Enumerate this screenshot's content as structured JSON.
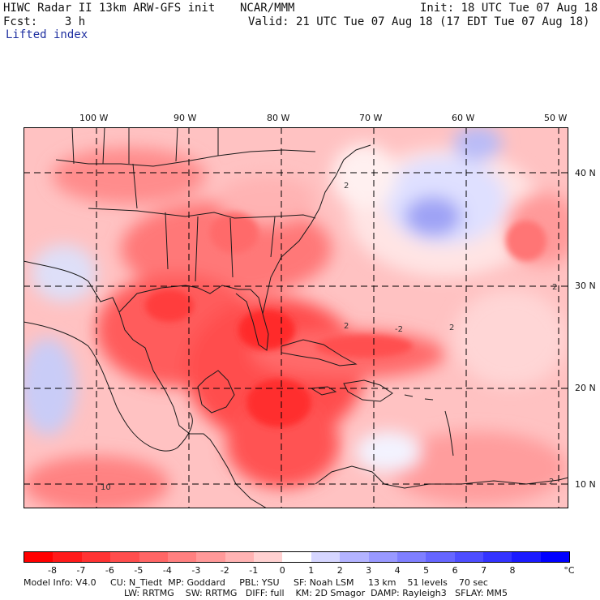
{
  "header": {
    "title": "HIWC Radar II 13km ARW-GFS init",
    "center": "NCAR/MMM",
    "init": "Init: 18 UTC Tue 07 Aug 18",
    "fcst": "Fcst:    3 h",
    "valid": "Valid: 21 UTC Tue 07 Aug 18 (17 EDT Tue 07 Aug 18)",
    "field": "Lifted index"
  },
  "map": {
    "lon_labels": [
      "100 W",
      "90 W",
      "80 W",
      "70 W",
      "60 W",
      "50 W"
    ],
    "lat_labels": [
      "40 N",
      "30 N",
      "20 N",
      "10 N"
    ],
    "contour_labels": [
      "2",
      "2",
      "2",
      "2",
      "2",
      "10",
      "-2"
    ]
  },
  "colorbar": {
    "ticks": [
      "-8",
      "-7",
      "-6",
      "-5",
      "-4",
      "-3",
      "-2",
      "-1",
      "0",
      "1",
      "2",
      "3",
      "4",
      "5",
      "6",
      "7",
      "8"
    ],
    "unit": "°C",
    "colors": [
      "#ff0000",
      "#ff1a1a",
      "#ff3333",
      "#ff4d4d",
      "#ff6666",
      "#ff8080",
      "#ff9999",
      "#ffb3b3",
      "#ffd1d1",
      "#ffffff",
      "#d6d6ff",
      "#b3b3ff",
      "#9999ff",
      "#7f7fff",
      "#6666ff",
      "#4d4dff",
      "#3333ff",
      "#1a1aff",
      "#0000ff"
    ]
  },
  "model_info": {
    "line1": "Model Info: V4.0     CU: N_Tiedt  MP: Goddard     PBL: YSU     SF: Noah LSM     13 km    51 levels    70 sec",
    "line2": "LW: RRTMG    SW: RRTMG   DIFF: full    KM: 2D Smagor  DAMP: Rayleigh3   SFLAY: MM5"
  }
}
